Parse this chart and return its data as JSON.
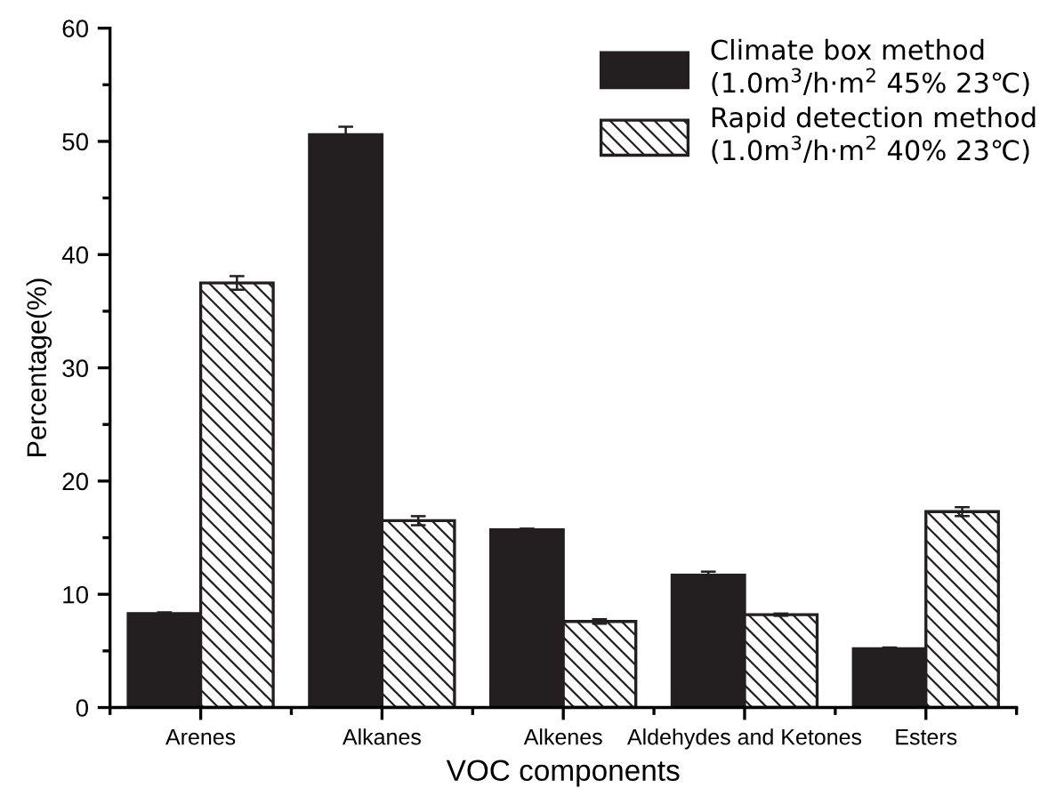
{
  "chart_data": {
    "type": "bar",
    "xlabel": "VOC components",
    "ylabel": "Percentage(%)",
    "categories": [
      "Arenes",
      "Alkanes",
      "Alkenes",
      "Aldehydes and Ketones",
      "Esters"
    ],
    "series": [
      {
        "name": "Climate box method\n(1.0m$^{3}$/h·m$^{2}$ 45% 23℃)",
        "color": "#231f20",
        "values": [
          8.3,
          50.6,
          15.7,
          11.7,
          5.2
        ],
        "errors": [
          0.1,
          0.7,
          0.1,
          0.3,
          0.1
        ]
      },
      {
        "name": "Rapid detection method\n(1.0m$^{3}$/h·m$^{2}$ 40% 23℃)",
        "color": "#231f20",
        "values": [
          37.5,
          16.5,
          7.6,
          8.2,
          17.3
        ],
        "errors": [
          0.6,
          0.4,
          0.2,
          0.1,
          0.4
        ]
      }
    ],
    "ylim": [
      0,
      60
    ],
    "yticks": [
      0,
      10,
      20,
      30,
      40,
      50,
      60
    ],
    "grid": false,
    "legend": "top right"
  }
}
